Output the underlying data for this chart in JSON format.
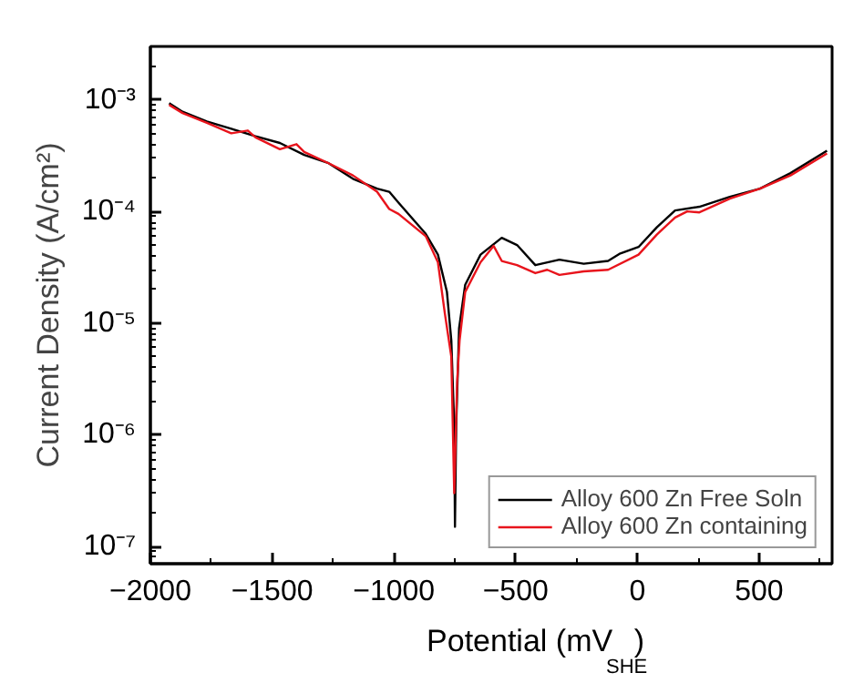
{
  "chart_data": {
    "type": "line",
    "xlabel": "Potential (mV$_{SHE}$)",
    "ylabel": "Current Density (A/cm²)",
    "log": "y",
    "xlim": [
      -2000,
      800
    ],
    "ylim": [
      7e-08,
      0.003
    ],
    "xticks": [
      -2000,
      -1500,
      -1000,
      -500,
      0,
      500
    ],
    "yticks": [
      {
        "value": 1e-07,
        "label": "10⁻⁷"
      },
      {
        "value": 1e-06,
        "label": "10⁻⁶"
      },
      {
        "value": 1e-05,
        "label": "10⁻⁵"
      },
      {
        "value": 0.0001,
        "label": "10⁻⁴"
      },
      {
        "value": 0.001,
        "label": "10⁻³"
      }
    ],
    "grid": false,
    "legend": "bottom right",
    "marker": "none",
    "line_style": "solid",
    "series": [
      {
        "name": "Alloy 600 Zn Free Soln",
        "color": "#000000",
        "x": [
          -1923,
          -1868,
          -1768,
          -1668,
          -1568,
          -1468,
          -1368,
          -1268,
          -1168,
          -1069,
          -1019,
          -981,
          -869,
          -819,
          -782,
          -764,
          -752,
          -749,
          -744,
          -732,
          -707,
          -644,
          -557,
          -494,
          -419,
          -320,
          -220,
          -120,
          -70,
          5,
          80,
          155,
          255,
          380,
          504,
          629,
          779
        ],
        "values": [
          0.00093,
          0.00078,
          0.00064,
          0.00055,
          0.00047,
          0.00041,
          0.00032,
          0.00027,
          0.000196,
          0.00016,
          0.00015,
          0.00012,
          6.3e-05,
          4.1e-05,
          1.9e-05,
          7e-06,
          1.2e-06,
          1.5e-07,
          1.2e-06,
          9e-06,
          2.2e-05,
          4.1e-05,
          5.8e-05,
          5e-05,
          3.3e-05,
          3.7e-05,
          3.4e-05,
          3.6e-05,
          4.2e-05,
          4.8e-05,
          7.2e-05,
          0.000102,
          0.00011,
          0.000135,
          0.00016,
          0.00022,
          0.00035
        ]
      },
      {
        "name": "Alloy 600 Zn containing",
        "color": "#e8141c",
        "x": [
          -1923,
          -1868,
          -1768,
          -1668,
          -1600,
          -1568,
          -1468,
          -1400,
          -1368,
          -1268,
          -1168,
          -1069,
          -1019,
          -981,
          -869,
          -819,
          -790,
          -764,
          -752,
          -740,
          -730,
          -707,
          -644,
          -590,
          -557,
          -494,
          -419,
          -370,
          -320,
          -220,
          -120,
          5,
          80,
          155,
          205,
          255,
          380,
          504,
          629,
          779
        ],
        "values": [
          0.0009,
          0.00076,
          0.00062,
          0.0005,
          0.00053,
          0.00046,
          0.00036,
          0.0004,
          0.00034,
          0.00027,
          0.00021,
          0.00015,
          0.000105,
          9.5e-05,
          6e-05,
          3.5e-05,
          1.2e-05,
          5e-06,
          3e-07,
          3e-06,
          7e-06,
          1.9e-05,
          3.5e-05,
          4.9e-05,
          3.6e-05,
          3.3e-05,
          2.8e-05,
          3e-05,
          2.7e-05,
          2.9e-05,
          3e-05,
          4.1e-05,
          6.2e-05,
          8.8e-05,
          0.0001,
          9.8e-05,
          0.00013,
          0.00016,
          0.00021,
          0.00033
        ]
      }
    ]
  }
}
